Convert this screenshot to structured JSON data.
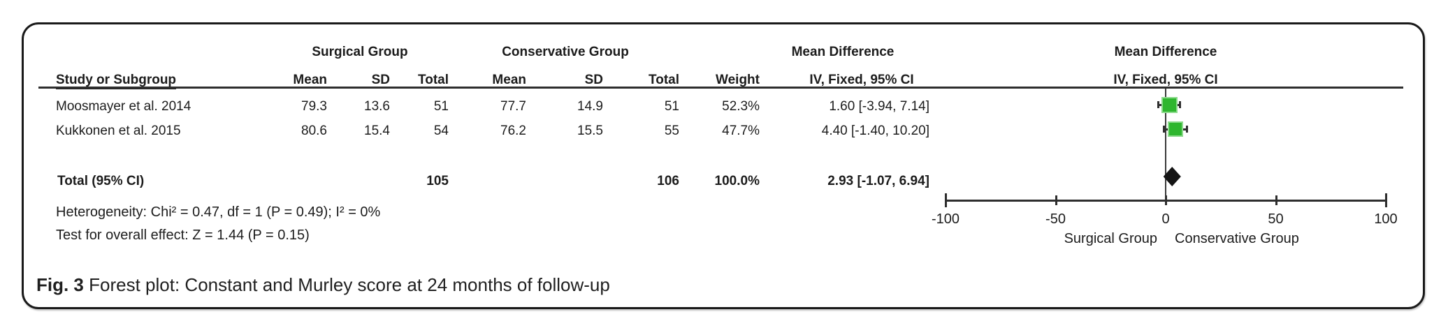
{
  "figure": {
    "caption_label": "Fig. 3",
    "caption_text": "Forest plot: Constant and Murley score at 24 months of follow-up"
  },
  "table": {
    "group_headers": {
      "surgical": "Surgical Group",
      "conservative": "Conservative Group",
      "mean_difference": "Mean Difference",
      "mean_difference_plot": "Mean Difference"
    },
    "col_headers": {
      "study": "Study or Subgroup",
      "s_mean": "Mean",
      "s_sd": "SD",
      "s_total": "Total",
      "c_mean": "Mean",
      "c_sd": "SD",
      "c_total": "Total",
      "weight": "Weight",
      "ci": "IV, Fixed, 95% CI",
      "ci_plot": "IV, Fixed, 95% CI"
    },
    "rows": [
      {
        "study": "Moosmayer et al. 2014",
        "s_mean": "79.3",
        "s_sd": "13.6",
        "s_total": "51",
        "c_mean": "77.7",
        "c_sd": "14.9",
        "c_total": "51",
        "weight": "52.3%",
        "ci": "1.60 [-3.94, 7.14]"
      },
      {
        "study": "Kukkonen et al. 2015",
        "s_mean": "80.6",
        "s_sd": "15.4",
        "s_total": "54",
        "c_mean": "76.2",
        "c_sd": "15.5",
        "c_total": "55",
        "weight": "47.7%",
        "ci": "4.40 [-1.40, 10.20]"
      }
    ],
    "total_row": {
      "label": "Total (95% CI)",
      "s_total": "105",
      "c_total": "106",
      "weight": "100.0%",
      "ci": "2.93 [-1.07, 6.94]"
    },
    "heterogeneity": "Heterogeneity: Chi² = 0.47, df = 1 (P = 0.49); I² = 0%",
    "overall_effect": "Test for overall effect: Z = 1.44 (P = 0.15)"
  },
  "chart_data": {
    "type": "forest",
    "effect_measure": "Mean Difference, IV, Fixed, 95% CI",
    "axis": {
      "min": -100,
      "max": 100,
      "ticks": [
        -100,
        -50,
        0,
        50,
        100
      ],
      "left_label": "Surgical Group",
      "right_label": "Conservative Group"
    },
    "studies": [
      {
        "name": "Moosmayer et al. 2014",
        "md": 1.6,
        "ci_low": -3.94,
        "ci_high": 7.14,
        "weight_pct": 52.3
      },
      {
        "name": "Kukkonen et al. 2015",
        "md": 4.4,
        "ci_low": -1.4,
        "ci_high": 10.2,
        "weight_pct": 47.7
      }
    ],
    "total": {
      "md": 2.93,
      "ci_low": -1.07,
      "ci_high": 6.94
    },
    "colors": {
      "marker_fill": "#2eb62e",
      "marker_border": "#8ad98a",
      "diamond": "#141414",
      "line": "#2f2f2f"
    }
  }
}
